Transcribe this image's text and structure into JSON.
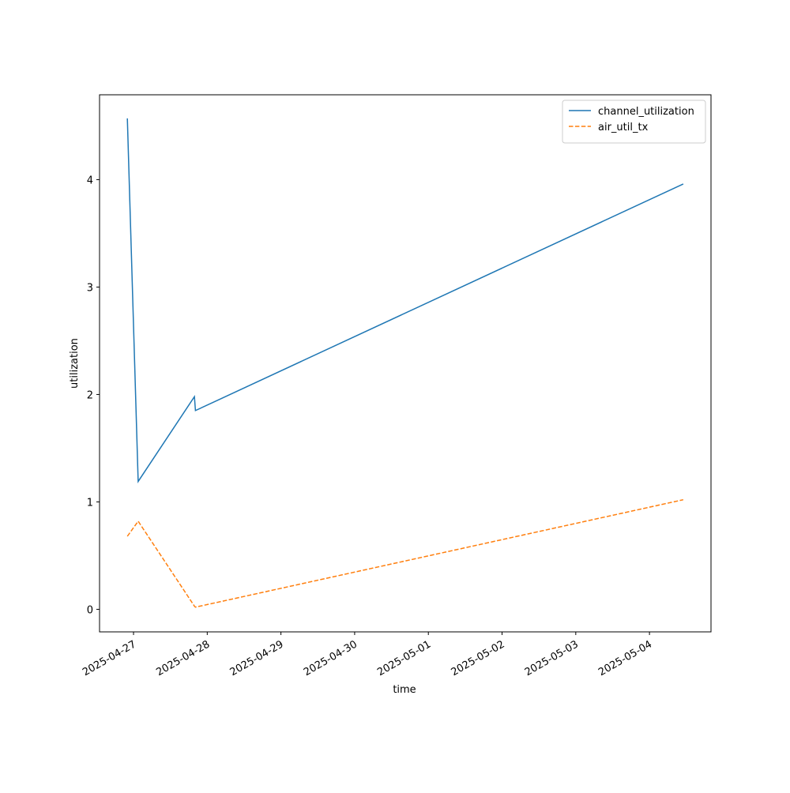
{
  "chart_data": {
    "type": "line",
    "x_label": "time",
    "y_label": "utilization",
    "x": [
      "2025-04-26 22:00",
      "2025-04-27 01:30",
      "2025-04-27 19:50",
      "2025-04-27 20:10",
      "2025-05-04 11:00"
    ],
    "series": [
      {
        "name": "channel_utilization",
        "color": "#1f77b4",
        "dash": "solid",
        "values": [
          4.57,
          1.19,
          1.98,
          1.85,
          3.96
        ]
      },
      {
        "name": "air_util_tx",
        "color": "#ff7f0e",
        "dash": "dashed",
        "values": [
          0.68,
          0.82,
          0.03,
          0.02,
          1.02
        ]
      }
    ],
    "xlim": [
      "2025-04-26 12:56",
      "2025-05-04 20:02"
    ],
    "xticks": [
      "2025-04-27",
      "2025-04-28",
      "2025-04-29",
      "2025-04-30",
      "2025-05-01",
      "2025-05-02",
      "2025-05-03",
      "2025-05-04"
    ],
    "ylim": [
      -0.21,
      4.79
    ],
    "yticks": [
      0,
      1,
      2,
      3,
      4
    ],
    "grid": false,
    "legend": "upper right"
  }
}
